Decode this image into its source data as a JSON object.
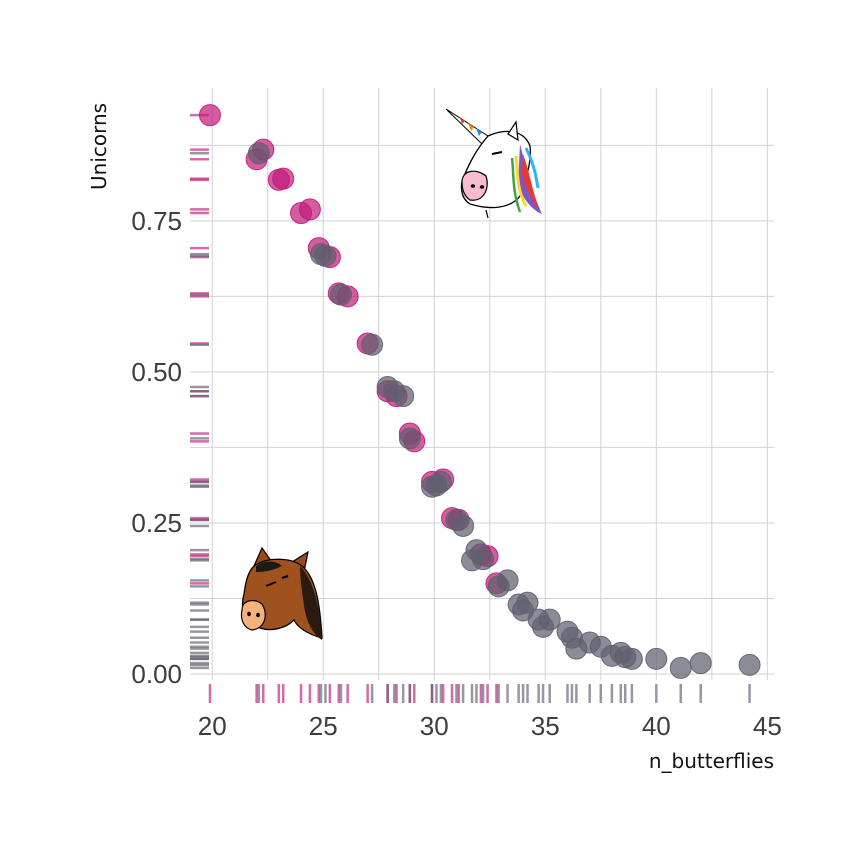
{
  "chart_data": {
    "type": "scatter",
    "title": "",
    "xlabel": "n_butterflies",
    "ylabel": "Unicorns",
    "xlim": [
      19,
      45.3
    ],
    "ylim": [
      -0.01,
      0.97
    ],
    "x_ticks": [
      20,
      25,
      30,
      35,
      40,
      45
    ],
    "x_tick_labels": [
      "20",
      "25",
      "30",
      "35",
      "40",
      "45"
    ],
    "y_ticks": [
      0,
      0.25,
      0.5,
      0.75
    ],
    "y_tick_labels": [
      "0.00",
      "0.25",
      "0.50",
      "0.75"
    ],
    "grid": true,
    "rug": true,
    "colors": {
      "magenta": "#c2187a",
      "gray": "#5f5f70",
      "grid": "#d2d2d2"
    },
    "icons": [
      "unicorn-icon",
      "horse-icon"
    ],
    "series": [
      {
        "color": "magenta",
        "points": [
          [
            19.9,
            0.925
          ],
          [
            22.0,
            0.852
          ],
          [
            22.3,
            0.868
          ],
          [
            23.0,
            0.818
          ],
          [
            23.2,
            0.82
          ],
          [
            24.0,
            0.763
          ],
          [
            24.4,
            0.769
          ],
          [
            24.8,
            0.705
          ],
          [
            25.3,
            0.69
          ],
          [
            25.7,
            0.63
          ],
          [
            26.1,
            0.625
          ],
          [
            27.0,
            0.547
          ],
          [
            27.9,
            0.468
          ],
          [
            28.3,
            0.46
          ],
          [
            28.9,
            0.398
          ],
          [
            29.1,
            0.385
          ],
          [
            29.9,
            0.318
          ],
          [
            30.4,
            0.322
          ],
          [
            30.8,
            0.258
          ],
          [
            31.1,
            0.255
          ],
          [
            32.1,
            0.198
          ],
          [
            32.4,
            0.195
          ],
          [
            32.8,
            0.15
          ]
        ]
      },
      {
        "color": "gray",
        "points": [
          [
            22.1,
            0.862
          ],
          [
            24.9,
            0.695
          ],
          [
            25.1,
            0.692
          ],
          [
            25.8,
            0.628
          ],
          [
            27.2,
            0.545
          ],
          [
            27.9,
            0.475
          ],
          [
            28.2,
            0.468
          ],
          [
            28.6,
            0.46
          ],
          [
            28.9,
            0.39
          ],
          [
            29.9,
            0.31
          ],
          [
            30.1,
            0.312
          ],
          [
            30.3,
            0.318
          ],
          [
            31.0,
            0.255
          ],
          [
            31.3,
            0.245
          ],
          [
            31.9,
            0.205
          ],
          [
            31.7,
            0.188
          ],
          [
            32.2,
            0.19
          ],
          [
            32.9,
            0.145
          ],
          [
            33.3,
            0.155
          ],
          [
            33.8,
            0.115
          ],
          [
            34.2,
            0.118
          ],
          [
            34.0,
            0.105
          ],
          [
            34.7,
            0.09
          ],
          [
            34.9,
            0.078
          ],
          [
            35.2,
            0.09
          ],
          [
            36.0,
            0.07
          ],
          [
            36.2,
            0.06
          ],
          [
            36.4,
            0.042
          ],
          [
            37.0,
            0.052
          ],
          [
            37.5,
            0.045
          ],
          [
            38.0,
            0.03
          ],
          [
            38.4,
            0.035
          ],
          [
            38.6,
            0.028
          ],
          [
            38.9,
            0.025
          ],
          [
            40.0,
            0.025
          ],
          [
            41.1,
            0.01
          ],
          [
            42.0,
            0.018
          ],
          [
            44.2,
            0.015
          ]
        ]
      }
    ]
  }
}
